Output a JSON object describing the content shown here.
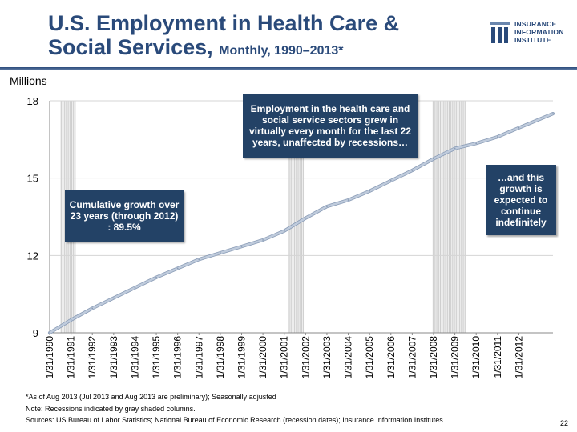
{
  "header": {
    "title_line1": "U.S. Employment in Health Care &",
    "title_line2": "Social Services,",
    "title_sub": "Monthly, 1990–2013*"
  },
  "logo": {
    "line1": "INSURANCE",
    "line2": "INFORMATION",
    "line3": "INSTITUTE"
  },
  "units_label": "Millions",
  "callouts": {
    "growth_text": "Employment  in the health care and social service sectors grew in virtually every month for the last 22 years, unaffected by recessions…",
    "cumulative_text": "Cumulative growth over 23 years (through 2012) : 89.5%",
    "expected_text": "…and this growth is expected to continue indefinitely"
  },
  "footnotes": {
    "line1": "*As of Aug 2013 (Jul 2013 and Aug 2013 are preliminary); Seasonally adjusted",
    "line2": "Note: Recessions indicated by gray shaded columns.",
    "line3": "Sources: US Bureau of Labor Statistics;  National Bureau of Economic Research (recession dates); Insurance Information Institutes."
  },
  "page_number": "22",
  "colors": {
    "line": "#bfcbdc",
    "callout_bg": "#234266",
    "title": "#2a4a7a",
    "recession": "#c8c8c8"
  },
  "chart_data": {
    "type": "line",
    "title": "U.S. Employment in Health Care & Social Services, Monthly, 1990–2013*",
    "ylabel": "Millions",
    "xlabel": "",
    "ylim": [
      9,
      18
    ],
    "yticks": [
      9,
      12,
      15,
      18
    ],
    "x_start_year": 1990,
    "x_end_year": 2013.6,
    "xtick_labels": [
      "1/31/1990",
      "1/31/1991",
      "1/31/1992",
      "1/31/1993",
      "1/31/1994",
      "1/31/1995",
      "1/31/1996",
      "1/31/1997",
      "1/31/1998",
      "1/31/1999",
      "1/31/2000",
      "1/31/2001",
      "1/31/2002",
      "1/31/2003",
      "1/31/2004",
      "1/31/2005",
      "1/31/2006",
      "1/31/2007",
      "1/31/2008",
      "1/31/2009",
      "1/31/2010",
      "1/31/2011",
      "1/31/2012"
    ],
    "recessions": [
      {
        "name": "1990-1991 recession",
        "start": 1990.5,
        "end": 1991.2
      },
      {
        "name": "2001 recession",
        "start": 2001.2,
        "end": 2001.9
      },
      {
        "name": "2007-2009 recession",
        "start": 2007.95,
        "end": 2009.5
      }
    ],
    "series": [
      {
        "name": "Employment in Health Care & Social Services",
        "x": [
          1990.0,
          1991.0,
          1992.0,
          1993.0,
          1994.0,
          1995.0,
          1996.0,
          1997.0,
          1998.0,
          1999.0,
          2000.0,
          2001.0,
          2002.0,
          2003.0,
          2004.0,
          2005.0,
          2006.0,
          2007.0,
          2008.0,
          2009.0,
          2010.0,
          2011.0,
          2012.0,
          2013.6
        ],
        "values": [
          9.0,
          9.5,
          9.95,
          10.35,
          10.75,
          11.15,
          11.5,
          11.85,
          12.1,
          12.35,
          12.6,
          12.95,
          13.45,
          13.9,
          14.15,
          14.5,
          14.9,
          15.3,
          15.75,
          16.15,
          16.35,
          16.6,
          16.95,
          17.5
        ]
      }
    ]
  }
}
